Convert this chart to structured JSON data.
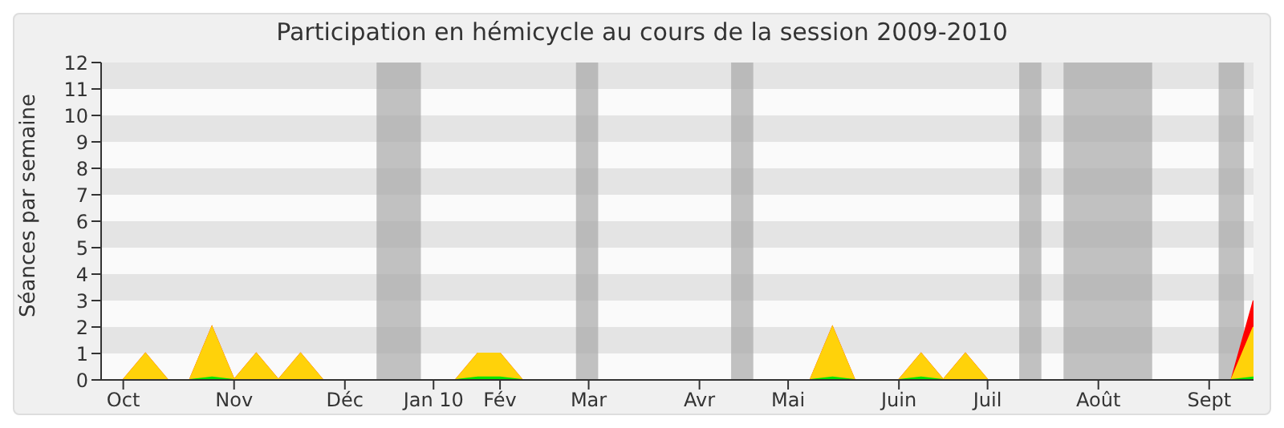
{
  "chart_data": {
    "type": "area",
    "title": "Participation en hémicycle au cours de la session 2009-2010",
    "ylabel": "Séances par semaine",
    "x": [
      "2009-09-28",
      "2009-10-05",
      "2009-10-12",
      "2009-10-19",
      "2009-10-26",
      "2009-11-02",
      "2009-11-09",
      "2009-11-16",
      "2009-11-23",
      "2009-11-30",
      "2009-12-07",
      "2009-12-14",
      "2009-12-21",
      "2009-12-28",
      "2010-01-04",
      "2010-01-11",
      "2010-01-18",
      "2010-01-25",
      "2010-02-01",
      "2010-02-08",
      "2010-02-15",
      "2010-02-22",
      "2010-03-01",
      "2010-03-08",
      "2010-03-15",
      "2010-03-22",
      "2010-03-29",
      "2010-04-05",
      "2010-04-12",
      "2010-04-19",
      "2010-04-26",
      "2010-05-03",
      "2010-05-10",
      "2010-05-17",
      "2010-05-24",
      "2010-05-31",
      "2010-06-07",
      "2010-06-14",
      "2010-06-21",
      "2010-06-28",
      "2010-07-05",
      "2010-07-12",
      "2010-07-19",
      "2010-07-26",
      "2010-08-02",
      "2010-08-09",
      "2010-08-16",
      "2010-08-23",
      "2010-08-30",
      "2010-09-06",
      "2010-09-13",
      "2010-09-20",
      "2010-09-27"
    ],
    "series": [
      {
        "color": "#ff0000",
        "values": [
          0,
          0,
          1,
          0,
          0,
          2,
          0,
          1,
          0,
          1,
          0,
          0,
          0,
          0,
          0,
          0,
          0,
          1,
          1,
          0,
          0,
          0,
          0,
          0,
          0,
          0,
          0,
          0,
          0,
          0,
          0,
          0,
          0,
          2,
          0,
          0,
          0,
          1,
          0,
          1,
          0,
          0,
          0,
          0,
          0,
          0,
          0,
          0,
          0,
          0,
          0,
          0,
          3
        ]
      },
      {
        "color": "#ffd20a",
        "values": [
          0,
          0,
          1,
          0,
          0,
          2,
          0,
          1,
          0,
          1,
          0,
          0,
          0,
          0,
          0,
          0,
          0,
          1,
          1,
          0,
          0,
          0,
          0,
          0,
          0,
          0,
          0,
          0,
          0,
          0,
          0,
          0,
          0,
          2,
          0,
          0,
          0,
          1,
          0,
          1,
          0,
          0,
          0,
          0,
          0,
          0,
          0,
          0,
          0,
          0,
          0,
          0,
          2
        ]
      },
      {
        "color": "#00e600",
        "values": [
          0,
          0,
          0,
          0,
          0,
          0.1,
          0,
          0,
          0,
          0,
          0,
          0,
          0,
          0,
          0,
          0,
          0,
          0.1,
          0.1,
          0,
          0,
          0,
          0,
          0,
          0,
          0,
          0,
          0,
          0,
          0,
          0,
          0,
          0,
          0.1,
          0,
          0,
          0,
          0.1,
          0,
          0,
          0,
          0,
          0,
          0,
          0,
          0,
          0,
          0,
          0,
          0,
          0,
          0,
          0.1
        ]
      }
    ],
    "xlim": [
      "2009-09-28",
      "2010-09-27"
    ],
    "xticks": [
      {
        "value": "2009-10-05",
        "label": "Oct"
      },
      {
        "value": "2009-11-09",
        "label": "Nov"
      },
      {
        "value": "2009-12-14",
        "label": "Déc"
      },
      {
        "value": "2010-01-11",
        "label": "Jan 10"
      },
      {
        "value": "2010-02-01",
        "label": "Fév"
      },
      {
        "value": "2010-03-01",
        "label": "Mar"
      },
      {
        "value": "2010-04-05",
        "label": "Avr"
      },
      {
        "value": "2010-05-03",
        "label": "Mai"
      },
      {
        "value": "2010-06-07",
        "label": "Juin"
      },
      {
        "value": "2010-07-05",
        "label": "Juil"
      },
      {
        "value": "2010-08-09",
        "label": "Août"
      },
      {
        "value": "2010-09-13",
        "label": "Sept"
      }
    ],
    "ylim": [
      0,
      12
    ],
    "yticks": [
      0,
      1,
      2,
      3,
      4,
      5,
      6,
      7,
      8,
      9,
      10,
      11,
      12
    ],
    "bands": [
      {
        "axis": "x",
        "from": "2009-12-24",
        "to": "2010-01-07",
        "color": "#a8a8a8"
      },
      {
        "axis": "x",
        "from": "2010-02-25",
        "to": "2010-03-04",
        "color": "#a8a8a8"
      },
      {
        "axis": "x",
        "from": "2010-04-15",
        "to": "2010-04-22",
        "color": "#a8a8a8"
      },
      {
        "axis": "x",
        "from": "2010-07-15",
        "to": "2010-07-22",
        "color": "#a8a8a8"
      },
      {
        "axis": "x",
        "from": "2010-07-29",
        "to": "2010-08-26",
        "color": "#a8a8a8"
      },
      {
        "axis": "x",
        "from": "2010-09-16",
        "to": "2010-09-24",
        "color": "#a8a8a8"
      }
    ],
    "legend": false
  }
}
